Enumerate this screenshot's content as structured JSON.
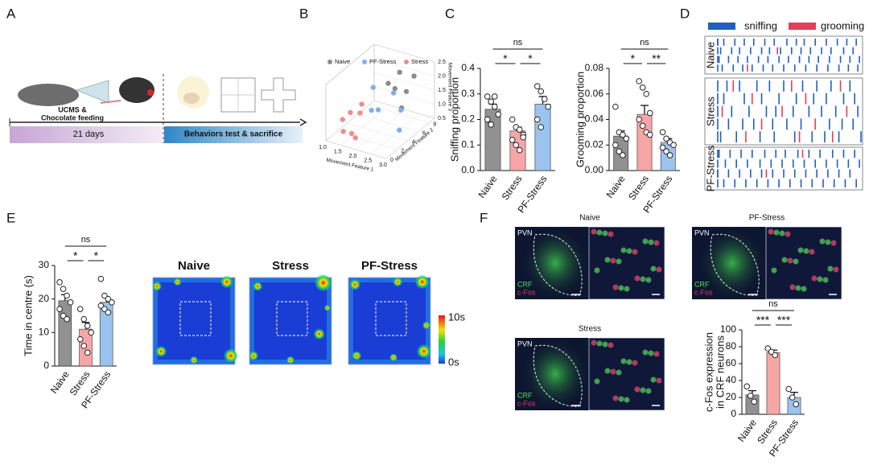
{
  "panel_labels": [
    "A",
    "B",
    "C",
    "D",
    "E",
    "F"
  ],
  "schematic": {
    "treatment_line1": "UCMS &",
    "treatment_line2": "Chocolate feeding",
    "duration": "21 days",
    "phase": "Behaviors test & sacrifice"
  },
  "chart_data": [
    {
      "type": "scatter3d",
      "xlabel": "Movement Feature 1",
      "ylabel": "Movement Feature 2",
      "zlabel": "Movement Feature 3",
      "xlim": [
        1,
        3
      ],
      "ylim": [
        0,
        9
      ],
      "zlim": [
        0.5,
        2.5
      ],
      "xticks": [
        {
          "value": 1,
          "label": "1.0"
        },
        1.5,
        {
          "value": 2,
          "label": "2.0"
        },
        2.5,
        {
          "value": 3,
          "label": "3.0"
        }
      ],
      "yticks": [
        0,
        2,
        4,
        6,
        8
      ],
      "zticks": [
        0.5,
        {
          "value": 1,
          "label": "1.0"
        },
        1.5,
        {
          "value": 2,
          "label": "2.0"
        },
        2.5
      ],
      "series": [
        {
          "name": "Naive",
          "color": "#8c8c8c",
          "x": [
            2.4,
            2.6,
            2.2,
            2.8,
            2.5,
            2.0
          ],
          "y": [
            5,
            6,
            7,
            4,
            8,
            6
          ],
          "z": [
            2.0,
            1.8,
            2.2,
            1.6,
            2.0,
            1.9
          ]
        },
        {
          "name": "PF-Stress",
          "color": "#7fb0ea",
          "x": [
            1.8,
            2.2,
            2.6,
            1.5,
            2.9,
            2.0
          ],
          "y": [
            4,
            3,
            5,
            6,
            3,
            7
          ],
          "z": [
            1.2,
            1.5,
            1.3,
            1.6,
            1.0,
            1.4
          ]
        },
        {
          "name": "Stress",
          "color": "#f28b8b",
          "x": [
            1.2,
            1.4,
            1.6,
            1.1,
            1.8,
            1.3,
            1.5
          ],
          "y": [
            2,
            1,
            3,
            4,
            1,
            5,
            2
          ],
          "z": [
            1.0,
            0.8,
            1.2,
            0.9,
            0.7,
            1.1,
            0.6
          ]
        }
      ]
    },
    {
      "type": "bar",
      "ylabel": "Sniffing proportion",
      "categories": [
        "Naive",
        "Stress",
        "PF-Stress"
      ],
      "colors": [
        "#919191",
        "#f6a6a6",
        "#9cc3ee"
      ],
      "values": [
        0.24,
        0.155,
        0.26
      ],
      "errors": [
        0.02,
        0.015,
        0.03
      ],
      "points": [
        [
          0.29,
          0.27,
          0.25,
          0.22,
          0.2,
          0.18,
          0.29
        ],
        [
          0.2,
          0.17,
          0.16,
          0.14,
          0.12,
          0.1,
          0.08,
          0.13
        ],
        [
          0.33,
          0.31,
          0.28,
          0.25,
          0.2,
          0.17
        ]
      ],
      "ylim": [
        0,
        0.4
      ],
      "yticks": [
        {
          "value": 0,
          "label": "0.0"
        },
        0.1,
        0.2,
        0.3,
        0.4
      ],
      "annotations": [
        "ns",
        "*",
        "*"
      ]
    },
    {
      "type": "bar",
      "ylabel": "Grooming proportion",
      "categories": [
        "Naive",
        "Stress",
        "PF-Stress"
      ],
      "colors": [
        "#919191",
        "#f6a6a6",
        "#9cc3ee"
      ],
      "values": [
        0.027,
        0.044,
        0.022
      ],
      "errors": [
        0.004,
        0.007,
        0.003
      ],
      "points": [
        [
          0.05,
          0.03,
          0.028,
          0.025,
          0.02,
          0.015,
          0.012
        ],
        [
          0.07,
          0.065,
          0.06,
          0.045,
          0.04,
          0.035,
          0.03,
          0.028
        ],
        [
          0.03,
          0.025,
          0.022,
          0.02,
          0.018,
          0.015,
          0.012
        ]
      ],
      "ylim": [
        0,
        0.08
      ],
      "yticks": [
        {
          "value": 0,
          "label": "0.00"
        },
        0.02,
        0.04,
        0.06,
        0.08
      ],
      "annotations": [
        "ns",
        "*",
        "**"
      ]
    },
    {
      "type": "raster",
      "xlim": [
        0,
        100
      ],
      "legend": [
        {
          "name": "sniffing",
          "color": "#1f5fbf"
        },
        {
          "name": "grooming",
          "color": "#e0405a"
        }
      ],
      "groups": [
        {
          "name": "Naive",
          "rows": [
            {
              "sniffing": [
                3,
                8,
                12,
                19,
                25,
                31,
                38,
                44,
                52,
                58,
                63,
                70,
                77,
                84,
                90,
                96
              ],
              "grooming": []
            },
            {
              "sniffing": [
                5,
                10,
                17,
                22,
                29,
                36,
                41,
                48,
                55,
                61,
                67,
                74,
                80,
                88,
                94
              ],
              "grooming": [
                46
              ]
            },
            {
              "sniffing": [
                2,
                9,
                15,
                21,
                27,
                34,
                40,
                47,
                53,
                60,
                66,
                72,
                79,
                86,
                92,
                98
              ],
              "grooming": []
            },
            {
              "sniffing": [
                4,
                11,
                18,
                24,
                30,
                37,
                43,
                50,
                57,
                64,
                71,
                78,
                85,
                91,
                97
              ],
              "grooming": [
                27
              ]
            }
          ]
        },
        {
          "name": "Stress",
          "rows": [
            {
              "sniffing": [
                6,
                14,
                22,
                33,
                41,
                50,
                62,
                71,
                80,
                92
              ],
              "grooming": [
                18,
                55,
                86
              ]
            },
            {
              "sniffing": [
                3,
                12,
                25,
                36,
                47,
                58,
                69,
                77,
                88,
                95
              ],
              "grooming": [
                30,
                64
              ]
            },
            {
              "sniffing": [
                8,
                17,
                28,
                39,
                45,
                56,
                66,
                74,
                83,
                97
              ],
              "grooming": [
                11,
                49,
                90
              ]
            },
            {
              "sniffing": [
                5,
                15,
                24,
                31,
                43,
                52,
                61,
                79,
                87,
                94
              ],
              "grooming": [
                36,
                70
              ]
            },
            {
              "sniffing": [
                2,
                10,
                20,
                35,
                44,
                57,
                68,
                76,
                85,
                99
              ],
              "grooming": [
                26,
                60,
                81
              ]
            }
          ]
        },
        {
          "name": "PF-Stress",
          "rows": [
            {
              "sniffing": [
                3,
                9,
                16,
                23,
                30,
                38,
                45,
                51,
                59,
                66,
                73,
                81,
                88,
                95
              ],
              "grooming": [
                62
              ]
            },
            {
              "sniffing": [
                6,
                13,
                20,
                27,
                35,
                42,
                49,
                56,
                63,
                70,
                77,
                84,
                91,
                98
              ],
              "grooming": []
            },
            {
              "sniffing": [
                2,
                8,
                15,
                22,
                29,
                36,
                43,
                50,
                57,
                64,
                71,
                78,
                85,
                92
              ],
              "grooming": [
                39
              ]
            },
            {
              "sniffing": [
                5,
                12,
                19,
                26,
                33,
                40,
                47,
                54,
                61,
                68,
                75,
                82,
                89,
                96
              ],
              "grooming": []
            }
          ]
        }
      ]
    },
    {
      "type": "bar",
      "ylabel": "Time in centre (s)",
      "categories": [
        "Naive",
        "Stress",
        "PF-Stress"
      ],
      "colors": [
        "#919191",
        "#f6a6a6",
        "#9cc3ee"
      ],
      "values": [
        19.5,
        11,
        19
      ],
      "errors": [
        1.8,
        2,
        1.5
      ],
      "points": [
        [
          25,
          23,
          21,
          19,
          17,
          15,
          14
        ],
        [
          17,
          14,
          12,
          10,
          8,
          6,
          4
        ],
        [
          26,
          21,
          20,
          19,
          18,
          17,
          16
        ]
      ],
      "ylim": [
        0,
        30
      ],
      "yticks": [
        0,
        10,
        20,
        30
      ],
      "annotations": [
        "ns",
        "*",
        "*"
      ]
    },
    {
      "type": "heatmap",
      "panels": [
        "Naive",
        "Stress",
        "PF-Stress"
      ],
      "colorbar": {
        "max": "10s",
        "min": "0s"
      }
    },
    {
      "type": "bar",
      "ylabel_line1": "c-Fos expression",
      "ylabel": "in CRF neurons",
      "categories": [
        "Naive",
        "Stress",
        "PF-Stress"
      ],
      "colors": [
        "#919191",
        "#f6a6a6",
        "#9cc3ee"
      ],
      "values": [
        23,
        73,
        20
      ],
      "errors": [
        5,
        3,
        6
      ],
      "points": [
        [
          33,
          22,
          15
        ],
        [
          78,
          74,
          70
        ],
        [
          30,
          20,
          12
        ]
      ],
      "ylim": [
        0,
        100
      ],
      "yticks": [
        0,
        20,
        40,
        60,
        80,
        100
      ],
      "annotations": [
        "ns",
        "***",
        "***"
      ]
    }
  ],
  "microscopy": {
    "panels": [
      {
        "title": "Naive",
        "region": "PVN",
        "stain1": "CRF",
        "stain2": "c-Fos"
      },
      {
        "title": "PF-Stress",
        "region": "PVN",
        "stain1": "CRF",
        "stain2": "c-Fos"
      },
      {
        "title": "Stress",
        "region": "PVN",
        "stain1": "CRF",
        "stain2": "c-Fos"
      }
    ]
  }
}
